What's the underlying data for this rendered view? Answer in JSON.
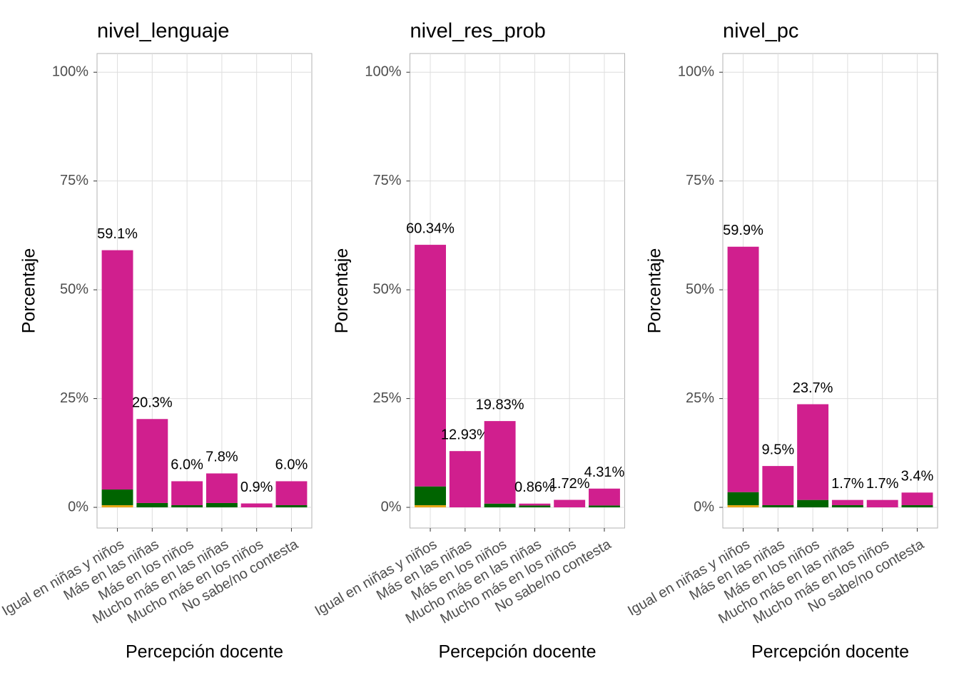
{
  "chart_data": [
    {
      "type": "bar",
      "stacked": true,
      "title": "nivel_lenguaje",
      "xlabel": "Percepción docente",
      "ylabel": "Porcentaje",
      "categories": [
        "Igual en niñas y niños",
        "Más en las niñas",
        "Más en los niños",
        "Mucho más en las niñas",
        "Mucho más en los niños",
        "No sabe/no contesta"
      ],
      "series": [
        {
          "color": "#e6a817",
          "values": [
            0.5,
            0,
            0,
            0,
            0,
            0
          ]
        },
        {
          "color": "#006400",
          "values": [
            3.6,
            1.0,
            0.5,
            1.0,
            0,
            0.5
          ]
        },
        {
          "color": "#d01f8e",
          "values": [
            55.0,
            19.3,
            5.5,
            6.8,
            0.9,
            5.5
          ]
        }
      ],
      "values": [
        59.1,
        20.3,
        6.0,
        7.8,
        0.9,
        6.0
      ],
      "value_labels": [
        "59.1%",
        "20.3%",
        "6.0%",
        "7.8%",
        "0.9%",
        "6.0%"
      ],
      "ylim": [
        -4.75,
        104.3
      ],
      "yticks": [
        {
          "value": 0,
          "label": "0%"
        },
        {
          "value": 25,
          "label": "25%"
        },
        {
          "value": 50,
          "label": "50%"
        },
        {
          "value": 75,
          "label": "75%"
        },
        {
          "value": 100,
          "label": "100%"
        }
      ],
      "grid": true
    },
    {
      "type": "bar",
      "stacked": true,
      "title": "nivel_res_prob",
      "xlabel": "Percepción docente",
      "ylabel": "Porcentaje",
      "categories": [
        "Igual en niñas y niños",
        "Más en las niñas",
        "Más en los niños",
        "Mucho más en las niñas",
        "Mucho más en los niños",
        "No sabe/no contesta"
      ],
      "series": [
        {
          "color": "#e6a817",
          "values": [
            0.5,
            0,
            0,
            0,
            0,
            0
          ]
        },
        {
          "color": "#006400",
          "values": [
            4.31,
            0,
            0.86,
            0.43,
            0,
            0.43
          ]
        },
        {
          "color": "#d01f8e",
          "values": [
            55.53,
            12.93,
            18.97,
            0.43,
            1.72,
            3.88
          ]
        }
      ],
      "values": [
        60.34,
        12.93,
        19.83,
        0.86,
        1.72,
        4.31
      ],
      "value_labels": [
        "60.34%",
        "12.93%",
        "19.83%",
        "0.86%",
        "1.72%",
        "4.31%"
      ],
      "ylim": [
        -4.75,
        104.3
      ],
      "yticks": [
        {
          "value": 0,
          "label": "0%"
        },
        {
          "value": 25,
          "label": "25%"
        },
        {
          "value": 50,
          "label": "50%"
        },
        {
          "value": 75,
          "label": "75%"
        },
        {
          "value": 100,
          "label": "100%"
        }
      ],
      "grid": true
    },
    {
      "type": "bar",
      "stacked": true,
      "title": "nivel_pc",
      "xlabel": "Percepción docente",
      "ylabel": "Porcentaje",
      "categories": [
        "Igual en niñas y niños",
        "Más en las niñas",
        "Más en los niños",
        "Mucho más en las niñas",
        "Mucho más en los niños",
        "No sabe/no contesta"
      ],
      "series": [
        {
          "color": "#e6a817",
          "values": [
            0.5,
            0,
            0,
            0,
            0,
            0
          ]
        },
        {
          "color": "#006400",
          "values": [
            3.0,
            0.5,
            1.7,
            0.5,
            0,
            0.5
          ]
        },
        {
          "color": "#d01f8e",
          "values": [
            56.4,
            9.0,
            22.0,
            1.2,
            1.7,
            2.9
          ]
        }
      ],
      "values": [
        59.9,
        9.5,
        23.7,
        1.7,
        1.7,
        3.4
      ],
      "value_labels": [
        "59.9%",
        "9.5%",
        "23.7%",
        "1.7%",
        "1.7%",
        "3.4%"
      ],
      "ylim": [
        -4.75,
        104.3
      ],
      "yticks": [
        {
          "value": 0,
          "label": "0%"
        },
        {
          "value": 25,
          "label": "25%"
        },
        {
          "value": 50,
          "label": "50%"
        },
        {
          "value": 75,
          "label": "75%"
        },
        {
          "value": 100,
          "label": "100%"
        }
      ],
      "grid": true
    }
  ]
}
